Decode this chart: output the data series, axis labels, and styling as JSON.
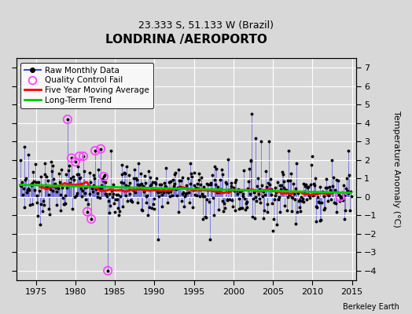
{
  "title": "LONDRINA /AEROPORTO",
  "subtitle": "23.333 S, 51.133 W (Brazil)",
  "ylabel": "Temperature Anomaly (°C)",
  "credit": "Berkeley Earth",
  "xlim": [
    1972.5,
    2015.5
  ],
  "ylim": [
    -4.5,
    7.5
  ],
  "yticks": [
    -4,
    -3,
    -2,
    -1,
    0,
    1,
    2,
    3,
    4,
    5,
    6,
    7
  ],
  "xticks": [
    1975,
    1980,
    1985,
    1990,
    1995,
    2000,
    2005,
    2010,
    2015
  ],
  "bg_color": "#d8d8d8",
  "grid_color": "white",
  "raw_line_color": "#4444dd",
  "raw_dot_color": "black",
  "qc_fail_color": "#ff44ff",
  "moving_avg_color": "red",
  "trend_color": "#00cc00",
  "title_fontsize": 11,
  "subtitle_fontsize": 9,
  "tick_fontsize": 8,
  "legend_fontsize": 7.5
}
